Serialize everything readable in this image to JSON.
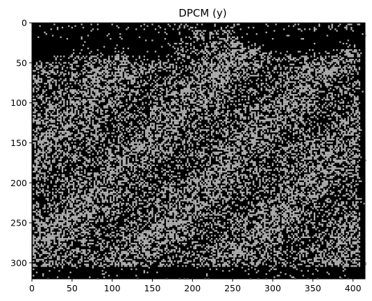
{
  "chart_data": {
    "type": "heatmap",
    "title": "DPCM (y)",
    "xlabel": "",
    "ylabel": "",
    "xlim": [
      0,
      415
    ],
    "ylim": [
      320,
      0
    ],
    "x_ticks": [
      0,
      50,
      100,
      150,
      200,
      250,
      300,
      350,
      400
    ],
    "y_ticks": [
      0,
      50,
      100,
      150,
      200,
      250,
      300
    ],
    "x_tick_labels": [
      "0",
      "50",
      "100",
      "150",
      "200",
      "250",
      "300",
      "350",
      "400"
    ],
    "y_tick_labels": [
      "0",
      "50",
      "100",
      "150",
      "200",
      "250",
      "300"
    ],
    "colormap": "gray",
    "colors": {
      "background": "#000000",
      "foreground": "#b4b4b4"
    },
    "grid": false,
    "block_size": 8,
    "dark_band_rows": [
      300,
      320
    ],
    "dark_band_cols": [
      405,
      415
    ],
    "top_dark_profile": [
      [
        0,
        55
      ],
      [
        20,
        55
      ],
      [
        40,
        50
      ],
      [
        60,
        45
      ],
      [
        80,
        42
      ],
      [
        100,
        40
      ],
      [
        115,
        45
      ],
      [
        130,
        55
      ],
      [
        150,
        55
      ],
      [
        170,
        45
      ],
      [
        190,
        30
      ],
      [
        205,
        12
      ],
      [
        225,
        8
      ],
      [
        240,
        10
      ],
      [
        255,
        20
      ],
      [
        270,
        35
      ],
      [
        290,
        40
      ],
      [
        310,
        42
      ],
      [
        330,
        45
      ],
      [
        350,
        48
      ],
      [
        370,
        42
      ],
      [
        390,
        38
      ],
      [
        410,
        35
      ],
      [
        415,
        35
      ]
    ]
  }
}
